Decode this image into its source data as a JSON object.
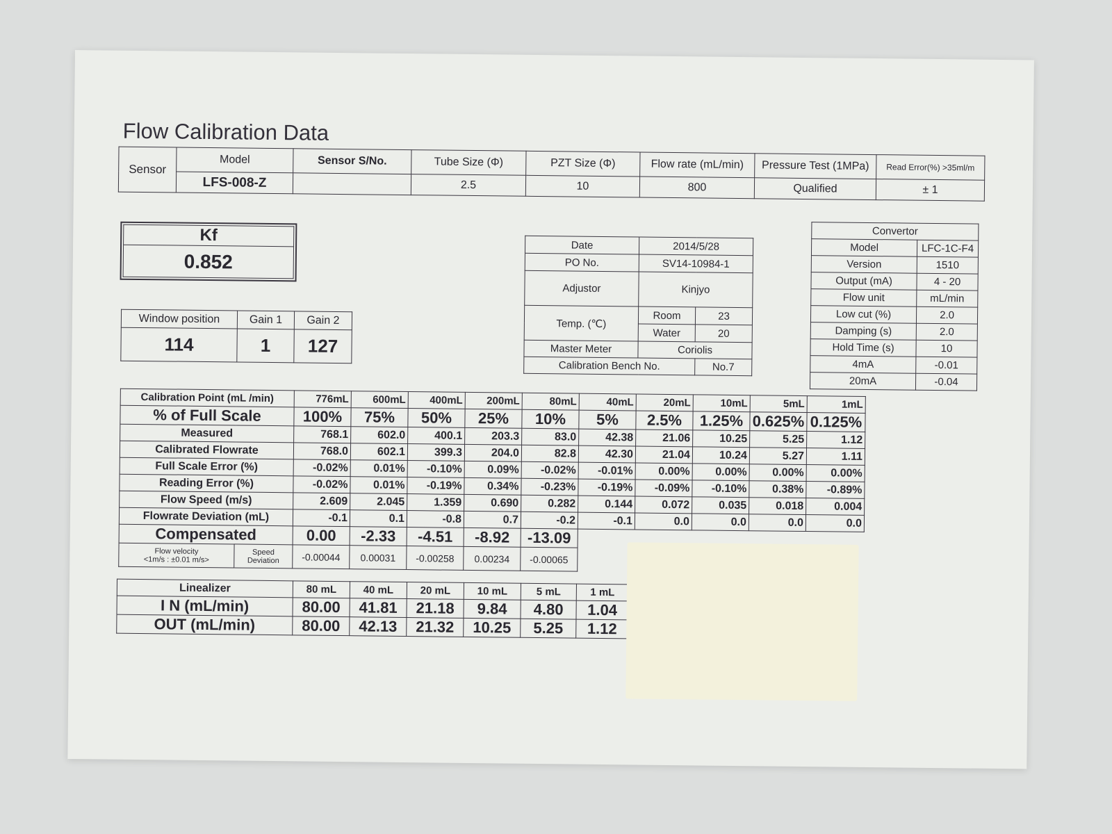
{
  "title": "Flow Calibration Data",
  "sensor_table": {
    "sensor_label": "Sensor",
    "headers": [
      "Model",
      "Sensor  S/No.",
      "Tube Size  (Φ)",
      "PZT Size (Φ)",
      "Flow rate (mL/min)",
      "Pressure Test (1MPa)",
      "Read Error(%) >35ml/m"
    ],
    "values": [
      "LFS-008-Z",
      "",
      "2.5",
      "10",
      "800",
      "Qualified",
      "± 1"
    ]
  },
  "kf": {
    "label": "Kf",
    "value": "0.852"
  },
  "window_table": {
    "headers": [
      "Window position",
      "Gain 1",
      "Gain 2"
    ],
    "values": [
      "114",
      "1",
      "127"
    ]
  },
  "info_table": {
    "date_label": "Date",
    "date": "2014/5/28",
    "po_label": "PO No.",
    "po": "SV14-10984-1",
    "adjustor_label": "Adjustor",
    "adjustor": "Kinjyo",
    "temp_label": "Temp. (℃)",
    "room_label": "Room",
    "room": "23",
    "water_label": "Water",
    "water": "20",
    "master_label": "Master Meter",
    "master": "Coriolis",
    "bench_label": "Calibration Bench No.",
    "bench": "No.7"
  },
  "convertor": {
    "title": "Convertor",
    "rows": [
      {
        "label": "Model",
        "value": "LFC-1C-F4"
      },
      {
        "label": "Version",
        "value": "1510"
      },
      {
        "label": "Output (mA)",
        "value": "4 - 20"
      },
      {
        "label": "Flow unit",
        "value": "mL/min"
      },
      {
        "label": "Low cut (%)",
        "value": "2.0"
      },
      {
        "label": "Damping (s)",
        "value": "2.0"
      },
      {
        "label": "Hold Time (s)",
        "value": "10"
      },
      {
        "label": "4mA",
        "value": "-0.01"
      },
      {
        "label": "20mA",
        "value": "-0.04"
      }
    ]
  },
  "calibration": {
    "rows": [
      {
        "label": "Calibration Point (mL /min)",
        "values": [
          "776mL",
          "600mL",
          "400mL",
          "200mL",
          "80mL",
          "40mL",
          "20mL",
          "10mL",
          "5mL",
          "1mL"
        ]
      },
      {
        "label": "% of Full Scale",
        "values": [
          "100%",
          "75%",
          "50%",
          "25%",
          "10%",
          "5%",
          "2.5%",
          "1.25%",
          "0.625%",
          "0.125%"
        ]
      },
      {
        "label": "Measured",
        "values": [
          "768.1",
          "602.0",
          "400.1",
          "203.3",
          "83.0",
          "42.38",
          "21.06",
          "10.25",
          "5.25",
          "1.12"
        ]
      },
      {
        "label": "Calibrated Flowrate",
        "values": [
          "768.0",
          "602.1",
          "399.3",
          "204.0",
          "82.8",
          "42.30",
          "21.04",
          "10.24",
          "5.27",
          "1.11"
        ]
      },
      {
        "label": "Full Scale Error (%)",
        "values": [
          "-0.02%",
          "0.01%",
          "-0.10%",
          "0.09%",
          "-0.02%",
          "-0.01%",
          "0.00%",
          "0.00%",
          "0.00%",
          "0.00%"
        ]
      },
      {
        "label": "Reading Error (%)",
        "values": [
          "-0.02%",
          "0.01%",
          "-0.19%",
          "0.34%",
          "-0.23%",
          "-0.19%",
          "-0.09%",
          "-0.10%",
          "0.38%",
          "-0.89%"
        ]
      },
      {
        "label": "Flow Speed (m/s)",
        "values": [
          "2.609",
          "2.045",
          "1.359",
          "0.690",
          "0.282",
          "0.144",
          "0.072",
          "0.035",
          "0.018",
          "0.004"
        ]
      },
      {
        "label": "Flowrate Deviation (mL)",
        "values": [
          "-0.1",
          "0.1",
          "-0.8",
          "0.7",
          "-0.2",
          "-0.1",
          "0.0",
          "0.0",
          "0.0",
          "0.0"
        ]
      }
    ],
    "compensated": {
      "label": "Compensated",
      "values": [
        "0.00",
        "-2.33",
        "-4.51",
        "-8.92",
        "-13.09"
      ]
    },
    "speed_deviation": {
      "label1": "Flow velocity",
      "label2": "<1m/s : ±0.01 m/s>",
      "label3": "Speed Deviation",
      "values": [
        "-0.00044",
        "0.00031",
        "-0.00258",
        "0.00234",
        "-0.00065"
      ]
    }
  },
  "linearizer": {
    "label": "Linealizer",
    "headers": [
      "80 mL",
      "40 mL",
      "20 mL",
      "10 mL",
      "5 mL",
      "1 mL"
    ],
    "in_label": "I N  (mL/min)",
    "in": [
      "80.00",
      "41.81",
      "21.18",
      "9.84",
      "4.80",
      "1.04"
    ],
    "out_label": "OUT (mL/min)",
    "out": [
      "80.00",
      "42.13",
      "21.32",
      "10.25",
      "5.25",
      "1.12"
    ]
  },
  "colors": {
    "paper": "#eceeea",
    "ink": "#2a2830",
    "sticker": "#f3f1dc"
  }
}
